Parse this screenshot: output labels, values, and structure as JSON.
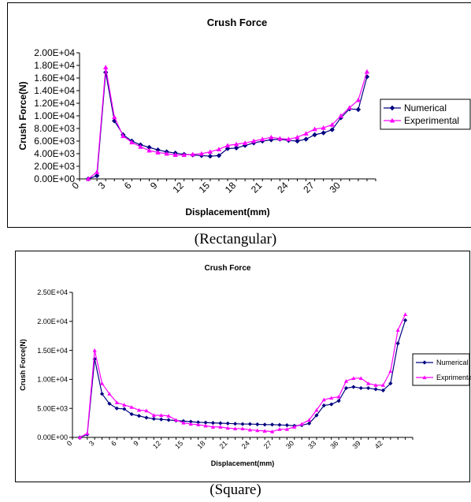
{
  "captions": [
    "(Rectangular)",
    "(Square)"
  ],
  "chart_data": [
    {
      "type": "line",
      "title": "Crush Force",
      "xlabel": "Displacement(mm)",
      "ylabel": "Crush Force(N)",
      "xlim": [
        0,
        34
      ],
      "ylim": [
        0,
        20000
      ],
      "yticks": [
        0,
        2000,
        4000,
        6000,
        8000,
        10000,
        12000,
        14000,
        16000,
        18000,
        20000
      ],
      "ytick_labels": [
        "0.00E+00",
        "2.00E+03",
        "4.00E+03",
        "6.00E+03",
        "8.00E+03",
        "1.00E+04",
        "1.20E+04",
        "1.40E+04",
        "1.60E+04",
        "1.80E+04",
        "2.00E+04"
      ],
      "xticks": [
        0,
        3,
        6,
        9,
        12,
        15,
        18,
        21,
        24,
        27,
        30
      ],
      "xtick_labels": [
        "0",
        "3",
        "6",
        "9",
        "12",
        "15",
        "18",
        "21",
        "24",
        "27",
        "30"
      ],
      "legend_position": "right",
      "series": [
        {
          "name": "Numerical",
          "color": "#000080",
          "marker": "diamond",
          "x": [
            1,
            2,
            3,
            4,
            5,
            6,
            7,
            8,
            9,
            10,
            11,
            12,
            13,
            14,
            15,
            16,
            17,
            18,
            19,
            20,
            21,
            22,
            23,
            24,
            25,
            26,
            27,
            28,
            29,
            30,
            31,
            32,
            33
          ],
          "y": [
            0,
            500,
            16900,
            9200,
            7000,
            6000,
            5400,
            5000,
            4600,
            4300,
            4100,
            3900,
            3800,
            3700,
            3600,
            3700,
            4800,
            4900,
            5300,
            5700,
            6000,
            6200,
            6300,
            6100,
            6000,
            6300,
            7000,
            7300,
            7800,
            9700,
            11100,
            11000,
            16200
          ]
        },
        {
          "name": "Experimental",
          "color": "#ff00ff",
          "marker": "triangle",
          "x": [
            1,
            2,
            3,
            4,
            5,
            6,
            7,
            8,
            9,
            10,
            11,
            12,
            13,
            14,
            15,
            16,
            17,
            18,
            19,
            20,
            21,
            22,
            23,
            24,
            25,
            26,
            27,
            28,
            29,
            30,
            31,
            32,
            33
          ],
          "y": [
            0,
            1100,
            17700,
            9800,
            6800,
            5800,
            5100,
            4500,
            4200,
            4000,
            3800,
            3800,
            3900,
            4000,
            4300,
            4700,
            5300,
            5500,
            5700,
            6000,
            6300,
            6600,
            6400,
            6300,
            6600,
            7200,
            7900,
            8100,
            8600,
            10000,
            11300,
            12500,
            17000
          ]
        }
      ]
    },
    {
      "type": "line",
      "title": "Crush Force",
      "xlabel": "Displacement(mm)",
      "ylabel": "Crush Force(N)",
      "xlim": [
        0,
        46
      ],
      "ylim": [
        0,
        25000
      ],
      "yticks": [
        0,
        5000,
        10000,
        15000,
        20000,
        25000
      ],
      "ytick_labels": [
        "0.00E+00",
        "5.00E+03",
        "1.00E+04",
        "1.50E+04",
        "2.00E+04",
        "2.50E+04"
      ],
      "xticks": [
        0,
        3,
        6,
        9,
        12,
        15,
        18,
        21,
        24,
        27,
        30,
        33,
        36,
        39,
        42
      ],
      "xtick_labels": [
        "0",
        "3",
        "6",
        "9",
        "12",
        "15",
        "18",
        "21",
        "24",
        "27",
        "30",
        "33",
        "36",
        "39",
        "42"
      ],
      "legend_position": "right",
      "series": [
        {
          "name": "Numerical",
          "color": "#000080",
          "marker": "diamond",
          "x": [
            1,
            2,
            3,
            4,
            5,
            6,
            7,
            8,
            9,
            10,
            11,
            12,
            13,
            14,
            15,
            16,
            17,
            18,
            19,
            20,
            21,
            22,
            23,
            24,
            25,
            26,
            27,
            28,
            29,
            30,
            31,
            32,
            33,
            34,
            35,
            36,
            37,
            38,
            39,
            40,
            41,
            42,
            43,
            44,
            45
          ],
          "y": [
            0,
            500,
            13500,
            7500,
            5800,
            5000,
            4900,
            4000,
            3700,
            3400,
            3200,
            3100,
            3000,
            2900,
            2800,
            2700,
            2600,
            2550,
            2500,
            2450,
            2400,
            2350,
            2300,
            2300,
            2250,
            2200,
            2200,
            2150,
            2100,
            2000,
            2100,
            2400,
            3800,
            5500,
            5700,
            6300,
            8500,
            8700,
            8500,
            8500,
            8300,
            8100,
            9300,
            16200,
            20200
          ]
        },
        {
          "name": "Exprimental",
          "color": "#ff00ff",
          "marker": "triangle",
          "x": [
            1,
            2,
            3,
            4,
            5,
            6,
            7,
            8,
            9,
            10,
            11,
            12,
            13,
            14,
            15,
            16,
            17,
            18,
            19,
            20,
            21,
            22,
            23,
            24,
            25,
            26,
            27,
            28,
            29,
            30,
            31,
            32,
            33,
            34,
            35,
            36,
            37,
            38,
            39,
            40,
            41,
            42,
            43,
            44,
            45
          ],
          "y": [
            0,
            700,
            15000,
            9300,
            7500,
            6000,
            5600,
            5200,
            4700,
            4600,
            3800,
            3800,
            3700,
            3000,
            2500,
            2300,
            2200,
            2000,
            1800,
            1800,
            1600,
            1500,
            1500,
            1300,
            1200,
            1100,
            1000,
            1400,
            1400,
            1800,
            2300,
            3000,
            4700,
            6500,
            6800,
            7000,
            9700,
            10200,
            10200,
            9300,
            9000,
            9000,
            11400,
            18500,
            21200
          ]
        }
      ]
    }
  ]
}
